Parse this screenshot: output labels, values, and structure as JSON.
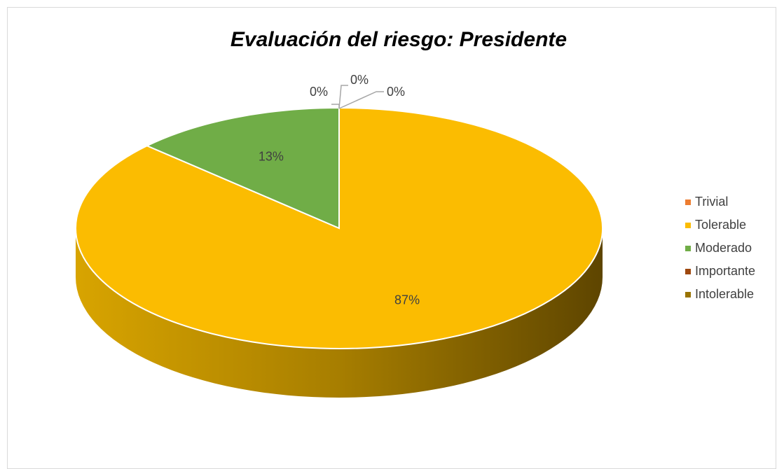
{
  "chart_data": {
    "type": "pie",
    "title": "Evaluación del riesgo: Presidente",
    "categories": [
      "Trivial",
      "Tolerable",
      "Moderado",
      "Importante",
      "Intolerable"
    ],
    "values": [
      0,
      87,
      13,
      0,
      0
    ],
    "data_labels": [
      "0%",
      "87%",
      "13%",
      "0%",
      "0%"
    ],
    "colors": [
      "#ed7d31",
      "#fbbc01",
      "#70ad47",
      "#9e480e",
      "#997300"
    ],
    "legend_position": "right",
    "three_d": true
  }
}
